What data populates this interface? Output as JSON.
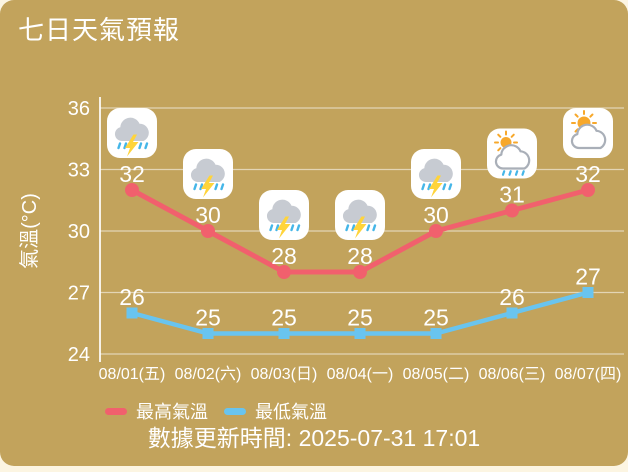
{
  "page": {
    "title": "七日天氣預報",
    "update_time": "數據更新時間: 2025-07-31 17:01"
  },
  "theme": {
    "card_background": "#c2a35c",
    "page_background": "#fcf5e2",
    "text_color": "#ffffff",
    "grid_color": "rgba(255,255,255,0.55)",
    "axis_color": "rgba(255,255,255,0.85)"
  },
  "chart_data": {
    "type": "line",
    "title": "七日天氣預報",
    "ylabel": "氣溫(°C)",
    "ylim": [
      24,
      36
    ],
    "yticks": [
      36,
      33,
      30,
      27,
      24
    ],
    "grid": true,
    "legend_position": "bottom-left",
    "categories": [
      "08/01(五)",
      "08/02(六)",
      "08/03(日)",
      "08/04(一)",
      "08/05(二)",
      "08/06(三)",
      "08/07(四)"
    ],
    "series": [
      {
        "name": "最高氣溫",
        "color": "#f1606d",
        "marker": "circle",
        "values": [
          32,
          30,
          28,
          28,
          30,
          31,
          32
        ]
      },
      {
        "name": "最低氣溫",
        "color": "#69c4ef",
        "marker": "square",
        "values": [
          26,
          25,
          25,
          25,
          25,
          26,
          27
        ]
      }
    ],
    "day_icons": [
      "thunderstorm",
      "thunderstorm",
      "thunderstorm",
      "thunderstorm",
      "thunderstorm",
      "sun-shower",
      "sun-cloud"
    ]
  },
  "icon_colors": {
    "tile": "#ffffff",
    "cloud_fill": "#c7cbd2",
    "cloud_outline": "#a9afb8",
    "rain": "#45b6e8",
    "bolt": "#ffd43b",
    "sun": "#f7a82b"
  }
}
